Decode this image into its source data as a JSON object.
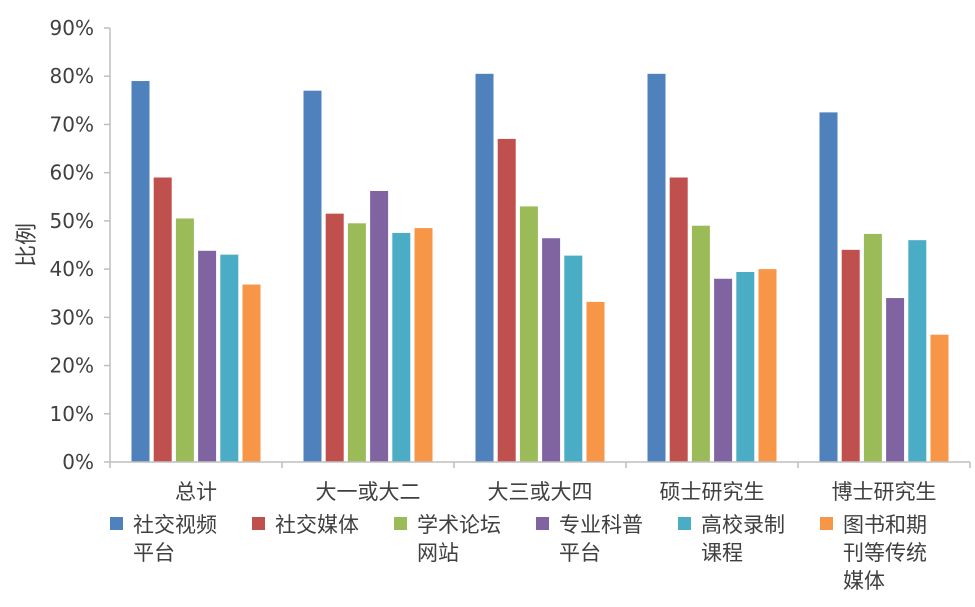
{
  "chart_data": {
    "type": "bar",
    "title": "",
    "ylabel": "比例",
    "xlabel": "",
    "ylim": [
      0,
      90
    ],
    "yticks": [
      "0%",
      "10%",
      "20%",
      "30%",
      "40%",
      "50%",
      "60%",
      "70%",
      "80%",
      "90%"
    ],
    "y_unit": "%",
    "grid": false,
    "legend_position": "bottom",
    "categories": [
      "总计",
      "大一或大二",
      "大三或大四",
      "硕士研究生",
      "博士研究生"
    ],
    "series": [
      {
        "name": "社交视频平台",
        "legend_lines": [
          "社交视频",
          "平台"
        ],
        "color": "#4F81BD",
        "values": [
          79,
          77,
          80.5,
          80.5,
          72.5
        ]
      },
      {
        "name": "社交媒体",
        "legend_lines": [
          "社交媒体"
        ],
        "color": "#C0504D",
        "values": [
          59,
          51.5,
          67,
          59,
          44
        ]
      },
      {
        "name": "学术论坛网站",
        "legend_lines": [
          "学术论坛",
          "网站"
        ],
        "color": "#9BBB59",
        "values": [
          50.5,
          49.5,
          53,
          49,
          47.3
        ]
      },
      {
        "name": "专业科普平台",
        "legend_lines": [
          "专业科普",
          "平台"
        ],
        "color": "#8064A2",
        "values": [
          43.8,
          56.2,
          46.4,
          38,
          34
        ]
      },
      {
        "name": "高校录制课程",
        "legend_lines": [
          "高校录制",
          "课程"
        ],
        "color": "#4BACC6",
        "values": [
          43,
          47.5,
          42.8,
          39.4,
          46
        ]
      },
      {
        "name": "图书和期刊等传统媒体",
        "legend_lines": [
          "图书和期",
          "刊等传统",
          "媒体"
        ],
        "color": "#F79646",
        "values": [
          36.8,
          48.5,
          33.2,
          40,
          26.4
        ]
      }
    ]
  }
}
